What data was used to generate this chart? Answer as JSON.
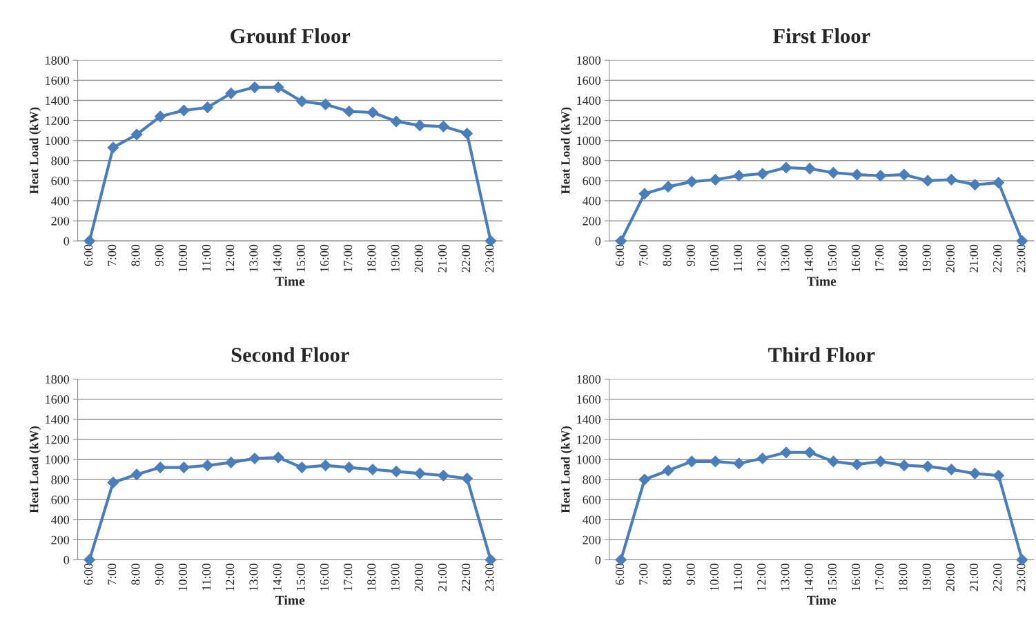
{
  "chart_data": [
    {
      "type": "line",
      "title": "Grounf Floor",
      "xlabel": "Time",
      "ylabel": "Heat Load (kW)",
      "categories": [
        "6:00",
        "7:00",
        "8:00",
        "9:00",
        "10:00",
        "11:00",
        "12:00",
        "13:00",
        "14:00",
        "15:00",
        "16:00",
        "17:00",
        "18:00",
        "19:00",
        "20:00",
        "21:00",
        "22:00",
        "23:00"
      ],
      "series": [
        {
          "color": "#4a7ebb",
          "values": [
            0,
            930,
            1060,
            1240,
            1300,
            1330,
            1470,
            1530,
            1530,
            1390,
            1360,
            1290,
            1280,
            1190,
            1150,
            1140,
            1070,
            0
          ]
        }
      ],
      "ylim": [
        0,
        1800
      ],
      "yticks": [
        0,
        200,
        400,
        600,
        800,
        1000,
        1200,
        1400,
        1600,
        1800
      ],
      "grid": "y",
      "marker": "diamond",
      "line_style": "solid"
    },
    {
      "type": "line",
      "title": "First Floor",
      "xlabel": "Time",
      "ylabel": "Heat Load (kW)",
      "categories": [
        "6:00",
        "7:00",
        "8:00",
        "9:00",
        "10:00",
        "11:00",
        "12:00",
        "13:00",
        "14:00",
        "15:00",
        "16:00",
        "17:00",
        "18:00",
        "19:00",
        "20:00",
        "21:00",
        "22:00",
        "23:00"
      ],
      "series": [
        {
          "color": "#4a7ebb",
          "values": [
            0,
            470,
            540,
            590,
            610,
            650,
            670,
            730,
            720,
            680,
            660,
            650,
            660,
            600,
            610,
            560,
            580,
            0
          ]
        }
      ],
      "ylim": [
        0,
        1800
      ],
      "yticks": [
        0,
        200,
        400,
        600,
        800,
        1000,
        1200,
        1400,
        1600,
        1800
      ],
      "grid": "y",
      "marker": "diamond",
      "line_style": "solid"
    },
    {
      "type": "line",
      "title": "Second Floor",
      "xlabel": "Time",
      "ylabel": "Heat Load (kW)",
      "categories": [
        "6:00",
        "7:00",
        "8:00",
        "9:00",
        "10:00",
        "11:00",
        "12:00",
        "13:00",
        "14:00",
        "15:00",
        "16:00",
        "17:00",
        "18:00",
        "19:00",
        "20:00",
        "21:00",
        "22:00",
        "23:00"
      ],
      "series": [
        {
          "color": "#4a7ebb",
          "values": [
            0,
            770,
            850,
            920,
            920,
            940,
            970,
            1010,
            1020,
            920,
            940,
            920,
            900,
            880,
            860,
            840,
            810,
            0
          ]
        }
      ],
      "ylim": [
        0,
        1800
      ],
      "yticks": [
        0,
        200,
        400,
        600,
        800,
        1000,
        1200,
        1400,
        1600,
        1800
      ],
      "grid": "y",
      "marker": "diamond",
      "line_style": "solid"
    },
    {
      "type": "line",
      "title": "Third Floor",
      "xlabel": "Time",
      "ylabel": "Heat Load (kW)",
      "categories": [
        "6:00",
        "7:00",
        "8:00",
        "9:00",
        "10:00",
        "11:00",
        "12:00",
        "13:00",
        "14:00",
        "15:00",
        "16:00",
        "17:00",
        "18:00",
        "19:00",
        "20:00",
        "21:00",
        "22:00",
        "23:00"
      ],
      "series": [
        {
          "color": "#4a7ebb",
          "values": [
            0,
            800,
            890,
            980,
            980,
            960,
            1010,
            1070,
            1070,
            980,
            950,
            980,
            940,
            930,
            900,
            860,
            840,
            0
          ]
        }
      ],
      "ylim": [
        0,
        1800
      ],
      "yticks": [
        0,
        200,
        400,
        600,
        800,
        1000,
        1200,
        1400,
        1600,
        1800
      ],
      "grid": "y",
      "marker": "diamond",
      "line_style": "solid"
    }
  ]
}
